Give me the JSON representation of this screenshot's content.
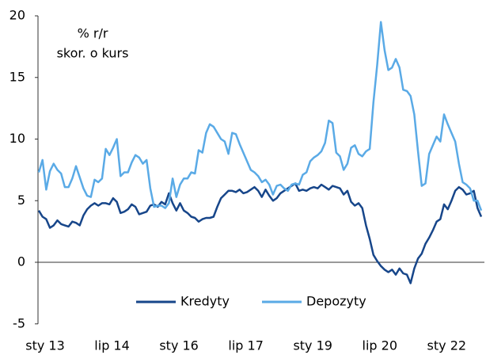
{
  "chart_data": {
    "type": "line",
    "annotation": [
      "% r/r",
      "skor. o kurs"
    ],
    "categories": [
      "sty 13",
      null,
      null,
      null,
      null,
      null,
      null,
      null,
      null,
      null,
      null,
      null,
      null,
      null,
      null,
      null,
      null,
      null,
      "lip 14",
      null,
      null,
      null,
      null,
      null,
      null,
      null,
      null,
      null,
      null,
      null,
      null,
      null,
      null,
      null,
      null,
      null,
      "sty 16",
      null,
      null,
      null,
      null,
      null,
      null,
      null,
      null,
      null,
      null,
      null,
      null,
      null,
      null,
      null,
      null,
      null,
      "lip 17",
      null,
      null,
      null,
      null,
      null,
      null,
      null,
      null,
      null,
      null,
      null,
      null,
      null,
      null,
      null,
      null,
      null,
      "sty 19",
      null,
      null,
      null,
      null,
      null,
      null,
      null,
      null,
      null,
      null,
      null,
      null,
      null,
      null,
      null,
      null,
      null,
      "lip 20",
      null,
      null,
      null,
      null,
      null,
      null,
      null,
      null,
      null,
      null,
      null,
      null,
      null,
      null,
      null,
      null,
      null,
      "sty 22",
      null,
      null,
      null,
      null,
      null,
      null,
      null,
      null,
      null,
      null,
      null
    ],
    "series": [
      {
        "name": "Kredyty",
        "color": "#17468a",
        "values": [
          4.2,
          3.7,
          3.5,
          2.8,
          3.0,
          3.4,
          3.1,
          3.0,
          2.9,
          3.3,
          3.2,
          3.0,
          3.8,
          4.3,
          4.6,
          4.8,
          4.6,
          4.8,
          4.8,
          4.7,
          5.2,
          4.9,
          4.0,
          4.1,
          4.3,
          4.7,
          4.5,
          3.9,
          4.0,
          4.1,
          4.6,
          4.7,
          4.5,
          4.9,
          4.7,
          5.6,
          4.8,
          4.2,
          4.8,
          4.2,
          4.0,
          3.7,
          3.6,
          3.3,
          3.5,
          3.6,
          3.6,
          3.7,
          4.5,
          5.2,
          5.5,
          5.8,
          5.8,
          5.7,
          5.9,
          5.6,
          5.7,
          5.9,
          6.1,
          5.8,
          5.3,
          5.9,
          5.4,
          5.0,
          5.2,
          5.6,
          5.8,
          6.0,
          6.2,
          6.4,
          5.8,
          5.9,
          5.8,
          6.0,
          6.1,
          6.0,
          6.3,
          6.1,
          5.9,
          6.2,
          6.1,
          6.0,
          5.5,
          5.8,
          4.9,
          4.6,
          4.8,
          4.4,
          3.0,
          1.9,
          0.6,
          0.1,
          -0.3,
          -0.6,
          -0.8,
          -0.6,
          -1.0,
          -0.5,
          -0.9,
          -1.0,
          -1.7,
          -0.5,
          0.3,
          0.7,
          1.5,
          2.0,
          2.6,
          3.3,
          3.5,
          4.7,
          4.3,
          5.0,
          5.8,
          6.1,
          5.9,
          5.5,
          5.6,
          5.8,
          4.4,
          3.7
        ]
      },
      {
        "name": "Depozyty",
        "color": "#5aaae6",
        "values": [
          7.3,
          8.3,
          5.9,
          7.4,
          8.0,
          7.5,
          7.2,
          6.1,
          6.1,
          6.8,
          7.8,
          6.9,
          6.0,
          5.4,
          5.3,
          6.7,
          6.5,
          6.8,
          9.2,
          8.7,
          9.3,
          10.0,
          7.0,
          7.3,
          7.3,
          8.1,
          8.7,
          8.5,
          8.0,
          8.3,
          6.0,
          4.5,
          4.6,
          4.6,
          4.4,
          4.8,
          6.8,
          5.3,
          6.3,
          6.8,
          6.8,
          7.3,
          7.2,
          9.1,
          8.9,
          10.5,
          11.2,
          11.0,
          10.5,
          10.0,
          9.8,
          8.8,
          10.5,
          10.4,
          9.6,
          8.9,
          8.2,
          7.5,
          7.3,
          7.0,
          6.5,
          6.7,
          6.3,
          5.5,
          6.2,
          6.3,
          6.0,
          5.8,
          6.3,
          6.4,
          6.3,
          7.1,
          7.3,
          8.2,
          8.5,
          8.7,
          9.0,
          9.7,
          11.5,
          11.3,
          8.9,
          8.6,
          7.5,
          8.0,
          9.3,
          9.5,
          8.8,
          8.6,
          9.0,
          9.2,
          13.0,
          16.0,
          19.5,
          17.2,
          15.6,
          15.8,
          16.5,
          15.8,
          14.0,
          13.9,
          13.5,
          12.0,
          9.0,
          6.2,
          6.4,
          8.8,
          9.5,
          10.2,
          9.8,
          12.0,
          11.2,
          10.5,
          9.8,
          8.0,
          6.5,
          6.3,
          6.0,
          5.0,
          5.0,
          4.2
        ]
      }
    ],
    "ylim": [
      -5,
      20
    ],
    "yticks": [
      -5,
      0,
      5,
      10,
      15,
      20
    ],
    "legend": "bottom"
  }
}
